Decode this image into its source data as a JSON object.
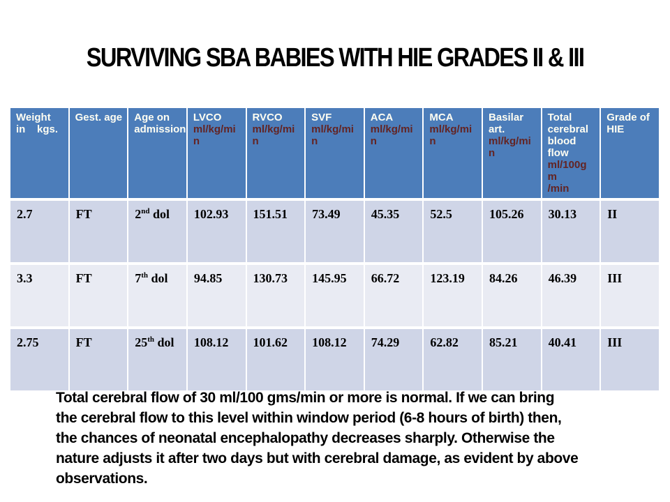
{
  "slide": {
    "title": "SURVIVING SBA BABIES WITH HIE GRADES II  & III"
  },
  "table": {
    "columns": [
      {
        "label": "Weight\nin    kgs.",
        "unit": ""
      },
      {
        "label": "Gest. age",
        "unit": ""
      },
      {
        "label": "Age on\nadmission",
        "unit": ""
      },
      {
        "label": "LVCO",
        "unit": "ml/kg/mi\nn"
      },
      {
        "label": "RVCO",
        "unit": "ml/kg/mi\nn"
      },
      {
        "label": "SVF",
        "unit": "ml/kg/mi\nn"
      },
      {
        "label": "ACA",
        "unit": "ml/kg/mi\nn"
      },
      {
        "label": "MCA",
        "unit": "ml/kg/mi\nn"
      },
      {
        "label": "Basilar\nart.",
        "unit": "ml/kg/mi\nn"
      },
      {
        "label": "Total\ncerebral\nblood\nflow",
        "unit": "ml/100gm\n/min"
      },
      {
        "label": "Grade of\nHIE",
        "unit": ""
      }
    ],
    "rows": [
      {
        "weight": "2.7",
        "gest_age": "FT",
        "age_num": "2",
        "age_sup": "nd",
        "age_rest": " dol",
        "lvco": "102.93",
        "rvco": "151.51",
        "svf": "73.49",
        "aca": "45.35",
        "mca": "52.5",
        "basilar": "105.26",
        "total_cbf": "30.13",
        "grade": "II"
      },
      {
        "weight": "3.3",
        "gest_age": "FT",
        "age_num": "7",
        "age_sup": "th",
        "age_rest": " dol",
        "lvco": "94.85",
        "rvco": "130.73",
        "svf": "145.95",
        "aca": "66.72",
        "mca": "123.19",
        "basilar": "84.26",
        "total_cbf": "46.39",
        "grade": "III"
      },
      {
        "weight": "2.75",
        "gest_age": "FT",
        "age_num": "25",
        "age_sup": "th",
        "age_rest": " dol",
        "lvco": "108.12",
        "rvco": "101.62",
        "svf": "108.12",
        "aca": "74.29",
        "mca": "62.82",
        "basilar": "85.21",
        "total_cbf": "40.41",
        "grade": "III"
      }
    ]
  },
  "note": {
    "lines": [
      "Total cerebral flow of 30 ml/100 gms/min or more is normal. If we can bring",
      "the cerebral flow to this level within window period (6-8 hours of birth) then,",
      "the chances of neonatal encephalopathy  decreases sharply. Otherwise the",
      "nature adjusts it after two days but with cerebral damage, as evident by above",
      "observations."
    ]
  },
  "colors": {
    "header_bg": "#4C7DBA",
    "row_band_a": "#CFD5E7",
    "row_band_b": "#E9EBF3",
    "header_label_text": "#FFFEF2",
    "header_unit_text": "#632423",
    "body_text": "#000000"
  }
}
